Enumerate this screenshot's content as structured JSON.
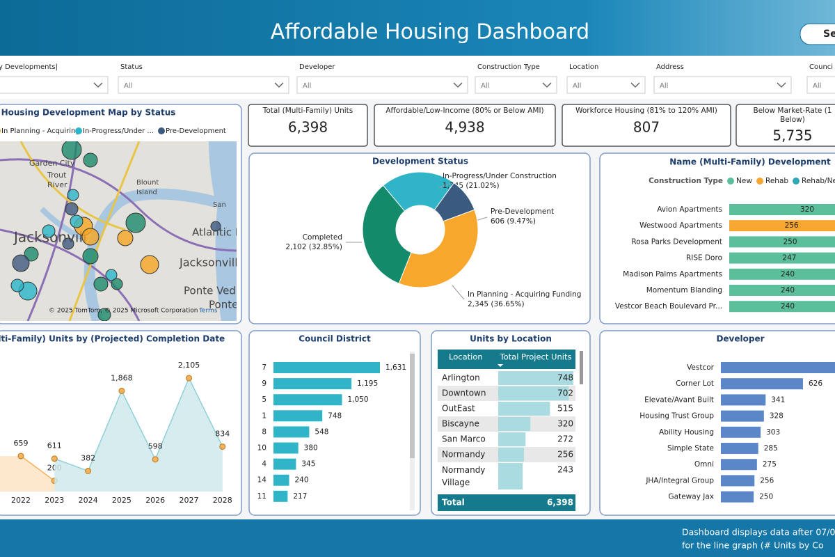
{
  "header": {
    "title": "Affordable Housing Dashboard",
    "button": "Se"
  },
  "filters": [
    {
      "label": "y Developments|"
    },
    {
      "label": "Status",
      "value": "All"
    },
    {
      "label": "Developer",
      "value": "All"
    },
    {
      "label": "Construction Type",
      "value": "All"
    },
    {
      "label": "Location",
      "value": "All"
    },
    {
      "label": "Address",
      "value": "All"
    },
    {
      "label": "Counci",
      "value": "All"
    }
  ],
  "kpis": [
    {
      "title_lines": [
        "Total (Multi-Family) Units"
      ],
      "value": "6,398"
    },
    {
      "title_lines": [
        "Affordable/Low-Income (80% or Below AMI)"
      ],
      "value": "4,938"
    },
    {
      "title_lines": [
        "Workforce Housing (81% to 120% AMI)"
      ],
      "value": "807"
    },
    {
      "title_lines": [
        "Below Market-Rate (1",
        "Below)"
      ],
      "value": "5,735"
    }
  ],
  "map": {
    "title": "Housing Development Map by Status",
    "legend": [
      {
        "name": "In Planning - Acquiring",
        "color": "#f5a623"
      },
      {
        "name": "In-Progress/Under ...",
        "color": "#2ab7c9"
      },
      {
        "name": "Pre-Development",
        "color": "#3d5a80"
      }
    ],
    "places": [
      "Garden City",
      "Trout",
      "River",
      "Blount",
      "Island",
      "San",
      "Atlantic B",
      "Jacksonvill",
      "Jacksonville",
      "Ponte Ved",
      "Ponte"
    ],
    "copyright": "© 2025 TomTom, © 2025 Microsoft Corporation",
    "terms": "Terms"
  },
  "development_status": {
    "type": "pie",
    "title": "Development Status",
    "categories": [
      "In-Progress/Under Construction",
      "Pre-Development",
      "In Planning - Acquiring Funding",
      "Completed"
    ],
    "values": [
      1345,
      606,
      2345,
      2102
    ],
    "value_labels": [
      "1,345 (21.02%)",
      "606 (9.47%)",
      "2,345 (36.65%)",
      "2,102 (32.85%)"
    ],
    "colors": [
      "#2fb5c7",
      "#3a5a80",
      "#f7a72c",
      "#138a6a"
    ]
  },
  "name_development": {
    "type": "bar",
    "title": "Name (Multi-Family) Development",
    "legend_title": "Construction Type",
    "legend": [
      {
        "name": "New",
        "color": "#5cbf9c"
      },
      {
        "name": "Rehab",
        "color": "#f7a630"
      },
      {
        "name": "Rehab/Ne",
        "color": "#2fa8b5"
      }
    ],
    "categories": [
      "Avion Apartments",
      "Westwood Apartments",
      "Rosa Parks Development",
      "RISE Doro",
      "Madison Palms Apartments",
      "Momentum Blanding",
      "Vestcor Beach Boulevard Pr..."
    ],
    "values": [
      320,
      256,
      250,
      247,
      240,
      240,
      240
    ],
    "colors": [
      "#5cbf9c",
      "#f7a630",
      "#5cbf9c",
      "#5cbf9c",
      "#5cbf9c",
      "#5cbf9c",
      "#5cbf9c"
    ]
  },
  "completion": {
    "type": "area",
    "title": "Multi-Family) Units by (Projected) Completion Date",
    "categories": [
      "2022",
      "2023",
      "2024",
      "2025",
      "2026",
      "2027",
      "2028"
    ],
    "series": [
      {
        "color": "#f5b25c",
        "values": [
          659,
          200,
          null,
          null,
          null,
          null,
          null
        ]
      },
      {
        "color": "#8fd0d8",
        "values": [
          null,
          611,
          382,
          1868,
          598,
          2105,
          834
        ],
        "value_labels": [
          null,
          "611",
          "382",
          "1,868",
          "598",
          "2,105",
          "834"
        ]
      }
    ]
  },
  "council_district": {
    "type": "bar",
    "title": "Council District",
    "categories": [
      "7",
      "9",
      "5",
      "1",
      "8",
      "10",
      "4",
      "14",
      "11"
    ],
    "values": [
      1631,
      1195,
      1050,
      748,
      548,
      380,
      345,
      240,
      217
    ],
    "value_labels": [
      "1,631",
      "1,195",
      "1,050",
      "748",
      "548",
      "380",
      "345",
      "240",
      "217"
    ],
    "color": "#2fb5c7"
  },
  "units_by_location": {
    "title": "Units by Location",
    "columns": [
      "Location",
      "Total Project Units"
    ],
    "rows": [
      [
        "Arlington",
        748
      ],
      [
        "Downtown",
        702
      ],
      [
        "OutEast",
        515
      ],
      [
        "Biscayne",
        320
      ],
      [
        "San Marco",
        272
      ],
      [
        "Normandy",
        256
      ],
      [
        "Normandy Village",
        243
      ]
    ],
    "total": [
      "Total",
      "6,398"
    ],
    "bar_color": "#a9dbe0"
  },
  "developer": {
    "type": "bar",
    "title": "Developer",
    "categories": [
      "Vestcor",
      "Corner Lot",
      "Elevate/Avant Built",
      "Housing Trust Group",
      "Ability Housing",
      "Simple State",
      "Omni",
      "JHA/Integral Group",
      "Gateway Jax"
    ],
    "values": [
      1000,
      626,
      341,
      328,
      303,
      285,
      275,
      256,
      250
    ],
    "value_labels": [
      null,
      "626",
      "341",
      "328",
      "303",
      "285",
      "275",
      "256",
      "250"
    ],
    "color": "#5b86c8"
  },
  "footer": {
    "lines": [
      "Dashboard displays data after 07/0",
      "for the line graph (# Units by Co"
    ]
  }
}
